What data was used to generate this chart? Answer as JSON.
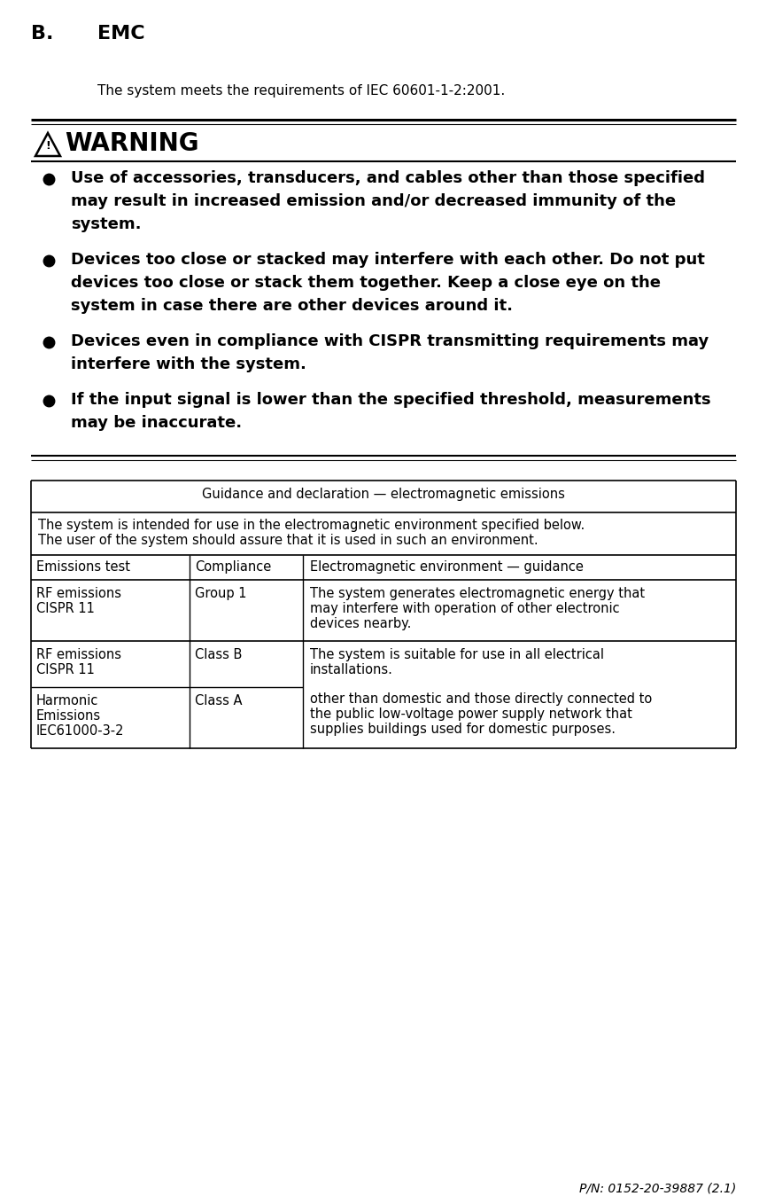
{
  "title_letter": "B.",
  "title_text": "EMC",
  "intro_text": "The system meets the requirements of IEC 60601-1-2:2001.",
  "warning_title": "WARNING",
  "warning_items": [
    [
      "Use of accessories, transducers, and cables other than those specified",
      "may result in increased emission and/or decreased immunity of the",
      "system."
    ],
    [
      "Devices too close or stacked may interfere with each other. Do not put",
      "devices too close or stack them together. Keep a close eye on the",
      "system in case there are other devices around it."
    ],
    [
      "Devices even in compliance with CISPR transmitting requirements may",
      "interfere with the system."
    ],
    [
      "If the input signal is lower than the specified threshold, measurements",
      "may be inaccurate."
    ]
  ],
  "table_header": "Guidance and declaration — electromagnetic emissions",
  "table_intro1": "The system is intended for use in the electromagnetic environment specified below.",
  "table_intro2": "The user of the system should assure that it is used in such an environment.",
  "col_headers": [
    "Emissions test",
    "Compliance",
    "Electromagnetic environment — guidance"
  ],
  "row0_col1": [
    "RF emissions",
    "CISPR 11"
  ],
  "row0_col2": "Group 1",
  "row0_col3": [
    "The system generates electromagnetic energy that",
    "may interfere with operation of other electronic",
    "devices nearby."
  ],
  "row1_col1": [
    "RF emissions",
    "CISPR 11"
  ],
  "row1_col2": "Class B",
  "row1_col3": [
    "The system is suitable for use in all electrical",
    "installations."
  ],
  "row2_col1": [
    "Harmonic",
    "Emissions",
    "IEC61000-3-2"
  ],
  "row2_col2": "Class A",
  "row2_col3": [
    "other than domestic and those directly connected to",
    "the public low-voltage power supply network that",
    "supplies buildings used for domestic purposes."
  ],
  "footer_text": "P/N: 0152-20-39887 (2.1)",
  "bg_color": "#ffffff",
  "text_color": "#000000"
}
